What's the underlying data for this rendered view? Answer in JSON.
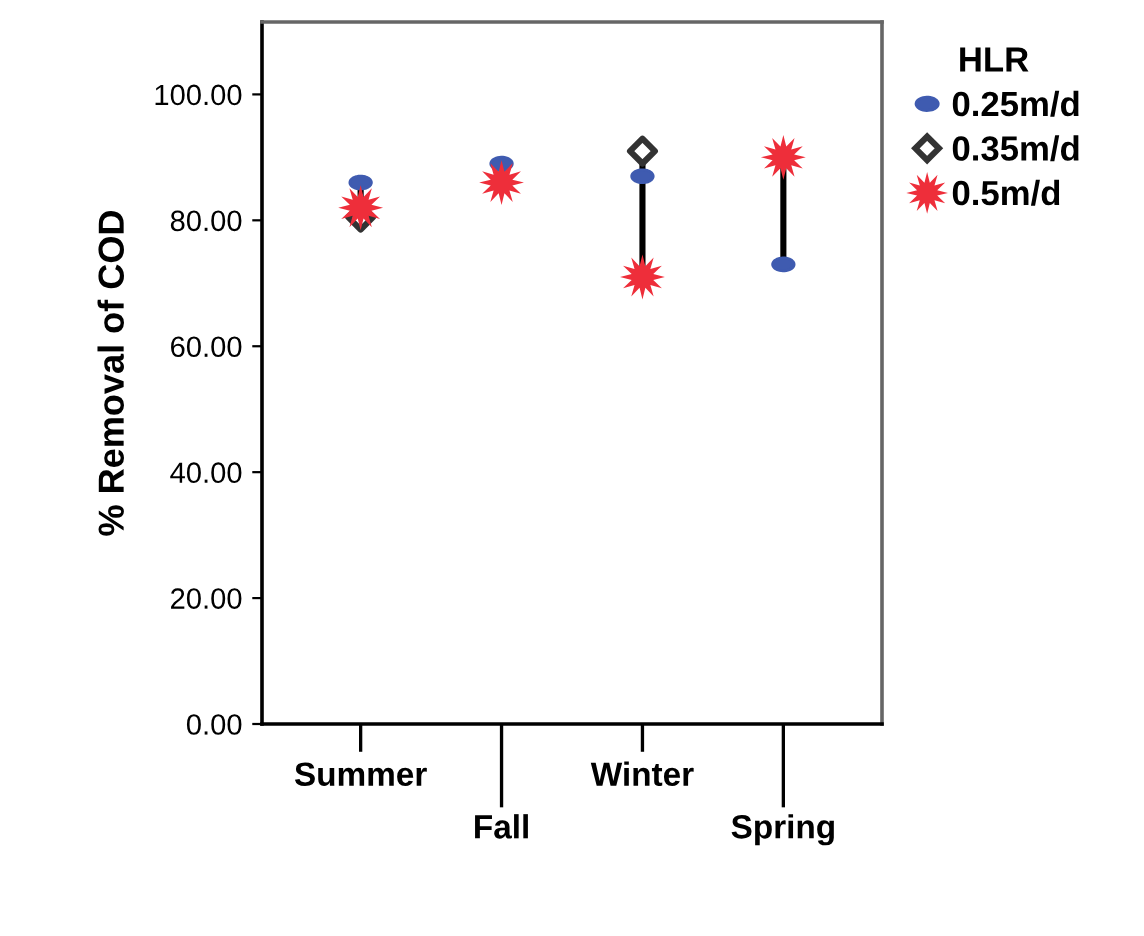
{
  "chart_data": {
    "type": "scatter",
    "ylabel": "% Removal of COD",
    "legend_title": "HLR",
    "legend": "right",
    "categories": [
      "Summer",
      "Fall",
      "Winter",
      "Spring"
    ],
    "ylim": [
      0,
      111.5
    ],
    "yticks": [
      {
        "value": 0,
        "label": "0.00"
      },
      {
        "value": 20,
        "label": "20.00"
      },
      {
        "value": 40,
        "label": "40.00"
      },
      {
        "value": 60,
        "label": "60.00"
      },
      {
        "value": 80,
        "label": "80.00"
      },
      {
        "value": 100,
        "label": "100.00"
      }
    ],
    "grid": false,
    "series": [
      {
        "name": "0.25m/d",
        "color": "#3f5bb0",
        "marker": "circle",
        "values": [
          86,
          89,
          87,
          73
        ]
      },
      {
        "name": "0.35m/d",
        "color": "#333333",
        "marker": "diamond",
        "values": [
          80.5,
          null,
          91,
          null
        ]
      },
      {
        "name": "0.5m/d",
        "color": "#ee2e3a",
        "marker": "star",
        "values": [
          82,
          86,
          71,
          90
        ]
      }
    ]
  }
}
